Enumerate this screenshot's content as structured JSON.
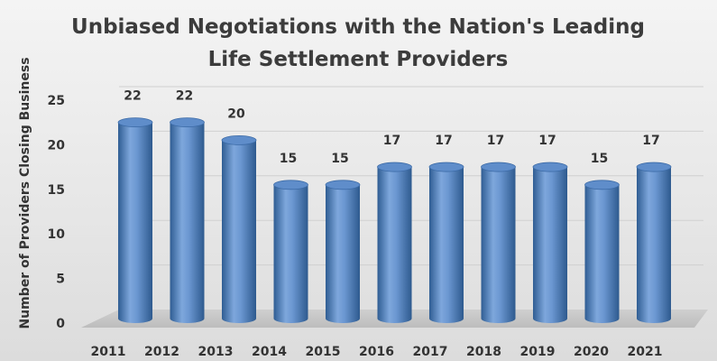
{
  "chart_data": {
    "type": "bar",
    "title_lines": [
      "Unbiased Negotiations with the Nation's Leading",
      "Life Settlement Providers"
    ],
    "ylabel": "Number of Providers Closing Business",
    "xlabel": "",
    "categories": [
      "2011",
      "2012",
      "2013",
      "2014",
      "2015",
      "2016",
      "2017",
      "2018",
      "2019",
      "2020",
      "2021"
    ],
    "values": [
      22,
      22,
      20,
      15,
      15,
      17,
      17,
      17,
      17,
      15,
      17
    ],
    "data_labels": [
      "22",
      "22",
      "20",
      "15",
      "15",
      "17",
      "17",
      "17",
      "17",
      "15",
      "17"
    ],
    "yticks": [
      "0",
      "5",
      "10",
      "15",
      "20",
      "25"
    ],
    "ylim": [
      0,
      25
    ],
    "grid": true,
    "legend": "none",
    "colors": {
      "bar": "#4f81bd",
      "bar_light": "#9dbde8",
      "bar_dark": "#2e5a8e",
      "floor": "#c9c9c9"
    }
  }
}
